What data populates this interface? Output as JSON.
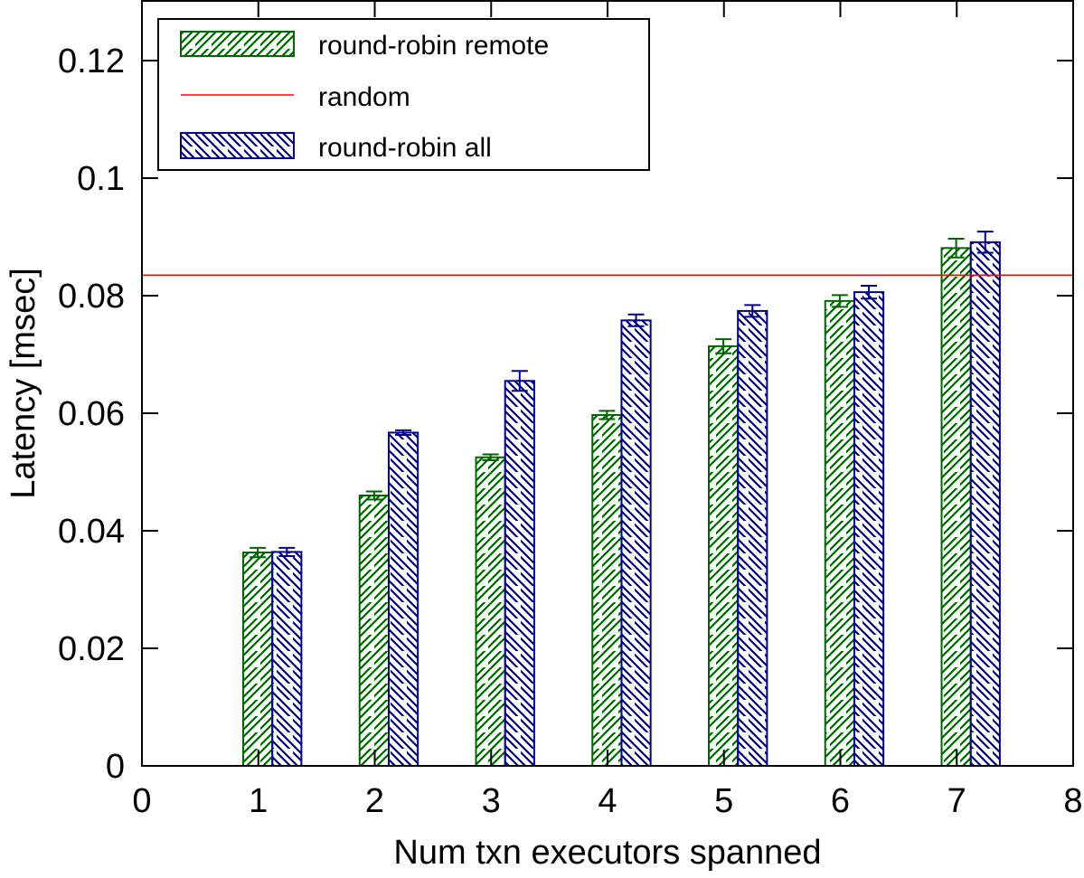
{
  "chart_data": {
    "type": "bar",
    "title": "",
    "xlabel": "Num txn executors spanned",
    "ylabel": "Latency [msec]",
    "xlim": [
      0,
      8
    ],
    "ylim": [
      0,
      0.13
    ],
    "x_ticks": [
      "0",
      "1",
      "2",
      "3",
      "4",
      "5",
      "6",
      "7",
      "8"
    ],
    "y_ticks": [
      "0",
      "0.02",
      "0.04",
      "0.06",
      "0.08",
      "0.1",
      "0.12"
    ],
    "y_tick_values": [
      0,
      0.02,
      0.04,
      0.06,
      0.08,
      0.1,
      0.12
    ],
    "grid": false,
    "legend_position": "top-left",
    "categories": [
      1,
      2,
      3,
      4,
      5,
      6,
      7
    ],
    "series": [
      {
        "name": "round-robin remote",
        "color": "#006400",
        "pattern": "hatch-forward",
        "values": [
          0.0363,
          0.046,
          0.0525,
          0.0597,
          0.0714,
          0.0791,
          0.0881
        ],
        "errors": [
          0.0008,
          0.0007,
          0.0005,
          0.0007,
          0.0012,
          0.001,
          0.0016
        ]
      },
      {
        "name": "random",
        "color": "#ff0000",
        "type": "hline",
        "value": 0.0835
      },
      {
        "name": "round-robin all",
        "color": "#00008b",
        "pattern": "hatch-backward",
        "values": [
          0.0364,
          0.0567,
          0.0655,
          0.0758,
          0.0774,
          0.0806,
          0.0891
        ],
        "errors": [
          0.0007,
          0.0004,
          0.0017,
          0.001,
          0.001,
          0.0011,
          0.0018
        ]
      }
    ]
  },
  "legend": {
    "items": [
      {
        "label": "round-robin remote"
      },
      {
        "label": "random"
      },
      {
        "label": "round-robin all"
      }
    ]
  }
}
